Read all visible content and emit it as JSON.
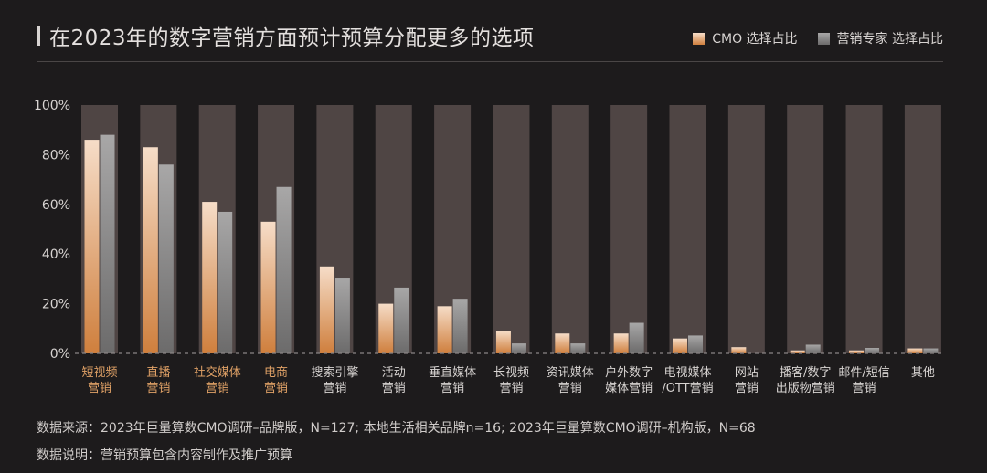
{
  "header": {
    "title": "在2023年的数字营销方面预计预算分配更多的选项"
  },
  "legend": {
    "cmo_label": "CMO 选择占比",
    "expert_label": "营销专家 选择占比"
  },
  "colors": {
    "background": "#1d1b1c",
    "column_bg": "#4f4544",
    "cmo_top": "#f6ddc8",
    "cmo_bottom": "#cf7f3d",
    "expert_top": "#a8a7a7",
    "expert_bottom": "#6c6b6b",
    "highlight_label": "#e0a166",
    "normal_label": "#d8d4d2"
  },
  "chart_data": {
    "type": "bar",
    "title": "在2023年的数字营销方面预计预算分配更多的选项",
    "categories": [
      [
        "短视频",
        "营销"
      ],
      [
        "直播",
        "营销"
      ],
      [
        "社交媒体",
        "营销"
      ],
      [
        "电商",
        "营销"
      ],
      [
        "搜索引擎",
        "营销"
      ],
      [
        "活动",
        "营销"
      ],
      [
        "垂直媒体",
        "营销"
      ],
      [
        "长视频",
        "营销"
      ],
      [
        "资讯媒体",
        "营销"
      ],
      [
        "户外数字",
        "媒体营销"
      ],
      [
        "电视媒体",
        "/OTT营销"
      ],
      [
        "网站",
        "营销"
      ],
      [
        "播客/数字",
        "出版物营销"
      ],
      [
        "邮件/短信",
        "营销"
      ],
      [
        "其他",
        ""
      ]
    ],
    "highlighted": [
      true,
      true,
      true,
      true,
      false,
      false,
      false,
      false,
      false,
      false,
      false,
      false,
      false,
      false,
      false
    ],
    "series": [
      {
        "name": "CMO 选择占比",
        "values": [
          86,
          83,
          61,
          53,
          35,
          20,
          19,
          9,
          8,
          8,
          6,
          2.5,
          1.2,
          1.2,
          2
        ]
      },
      {
        "name": "营销专家 选择占比",
        "values": [
          88,
          76,
          57,
          67,
          30.5,
          26.5,
          22,
          4,
          4,
          12.3,
          7.2,
          0,
          3.5,
          2.2,
          2
        ]
      }
    ],
    "ylim": [
      0,
      100
    ],
    "yticks": [
      "0%",
      "20%",
      "40%",
      "60%",
      "80%",
      "100%"
    ],
    "ytick_values": [
      0,
      20,
      40,
      60,
      80,
      100
    ],
    "xlabel": "",
    "ylabel": ""
  },
  "footer": {
    "source": "数据来源：2023年巨量算数CMO调研–品牌版，N=127; 本地生活相关品牌n=16; 2023年巨量算数CMO调研–机构版，N=68",
    "note": "数据说明：营销预算包含内容制作及推广预算"
  }
}
